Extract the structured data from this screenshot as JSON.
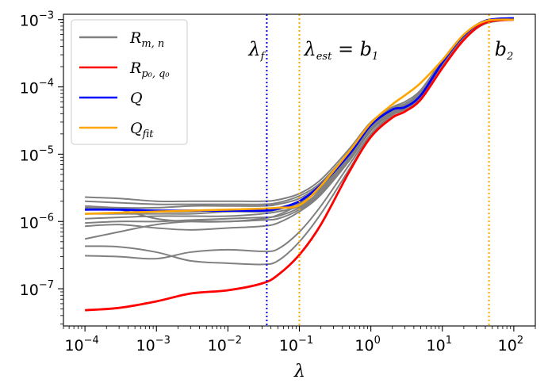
{
  "chart_data": {
    "type": "line",
    "xscale": "log",
    "yscale": "log",
    "xlim": [
      5e-05,
      200
    ],
    "ylim": [
      2.8e-08,
      0.0012
    ],
    "xlabel": "λ",
    "ylabel": "",
    "x_ticks": [
      {
        "value": 0.0001,
        "base": "10",
        "exp": "−4"
      },
      {
        "value": 0.001,
        "base": "10",
        "exp": "−3"
      },
      {
        "value": 0.01,
        "base": "10",
        "exp": "−2"
      },
      {
        "value": 0.1,
        "base": "10",
        "exp": "−1"
      },
      {
        "value": 1,
        "base": "10",
        "exp": "0"
      },
      {
        "value": 10,
        "base": "10",
        "exp": "1"
      },
      {
        "value": 100,
        "base": "10",
        "exp": "2"
      }
    ],
    "y_ticks": [
      {
        "value": 1e-07,
        "base": "10",
        "exp": "−7"
      },
      {
        "value": 1e-06,
        "base": "10",
        "exp": "−6"
      },
      {
        "value": 1e-05,
        "base": "10",
        "exp": "−5"
      },
      {
        "value": 0.0001,
        "base": "10",
        "exp": "−4"
      },
      {
        "value": 0.001,
        "base": "10",
        "exp": "−3"
      }
    ],
    "vlines": [
      {
        "name": "lambda-f",
        "x": 0.035,
        "color": "#0000ff"
      },
      {
        "name": "lambda-est",
        "x": 0.1,
        "color": "#ffa500"
      },
      {
        "name": "b2",
        "x": 45,
        "color": "#ffa500"
      }
    ],
    "annotations": {
      "lambda_f": {
        "main": "λ",
        "sub": "f",
        "x": 0.035
      },
      "lambda_est": {
        "main": "λ",
        "sub": "est",
        "rest": " = b",
        "sub2": "1",
        "x": 0.1
      },
      "b2": {
        "main": "b",
        "sub": "2",
        "x": 45
      }
    },
    "legend": {
      "position": "top-left",
      "entries": [
        {
          "label_main": "R",
          "label_sub": "m, n",
          "color": "#808080"
        },
        {
          "label_main": "R",
          "label_sub": "p₀, q₀",
          "color": "#ff0000"
        },
        {
          "label_main": "Q",
          "label_sub": "",
          "color": "#0000ff"
        },
        {
          "label_main": "Q",
          "label_sub": "fit",
          "color": "#ffa500"
        }
      ]
    },
    "series_x": [
      0.0001,
      0.0003,
      0.001,
      0.003,
      0.01,
      0.03,
      0.05,
      0.1,
      0.2,
      0.5,
      1,
      2,
      3,
      5,
      10,
      20,
      40,
      100
    ],
    "gray_series": [
      {
        "name": "R_m,n",
        "color": "#808080",
        "values": [
          2.3e-06,
          2.2e-06,
          2e-06,
          2e-06,
          2e-06,
          2e-06,
          2.1e-06,
          2.6e-06,
          4.2e-06,
          1.2e-05,
          3e-05,
          5e-05,
          6e-05,
          9e-05,
          0.00025,
          0.0006,
          0.00095,
          0.00105
        ]
      },
      {
        "name": "R_m,n",
        "color": "#808080",
        "values": [
          2e-06,
          1.9e-06,
          1.8e-06,
          1.8e-06,
          1.8e-06,
          1.8e-06,
          1.9e-06,
          2.4e-06,
          3.8e-06,
          1.1e-05,
          2.8e-05,
          4.8e-05,
          5.6e-05,
          8.5e-05,
          0.00024,
          0.00058,
          0.00094,
          0.00105
        ]
      },
      {
        "name": "R_m,n",
        "color": "#808080",
        "values": [
          1.7e-06,
          1.6e-06,
          1.6e-06,
          1.7e-06,
          1.7e-06,
          1.7e-06,
          1.8e-06,
          2.2e-06,
          3.6e-06,
          1.05e-05,
          2.7e-05,
          4.6e-05,
          5.3e-05,
          8.2e-05,
          0.00023,
          0.00056,
          0.00093,
          0.00104
        ]
      },
      {
        "name": "R_m,n",
        "color": "#808080",
        "values": [
          1.5e-06,
          1.5e-06,
          1.4e-06,
          1.4e-06,
          1.5e-06,
          1.5e-06,
          1.6e-06,
          2e-06,
          3.3e-06,
          1e-05,
          2.6e-05,
          4.5e-05,
          5.2e-05,
          8e-05,
          0.00023,
          0.00055,
          0.00092,
          0.00104
        ]
      },
      {
        "name": "R_m,n",
        "color": "#808080",
        "values": [
          1.3e-06,
          1.3e-06,
          1.3e-06,
          1.3e-06,
          1.4e-06,
          1.4e-06,
          1.5e-06,
          1.9e-06,
          3.1e-06,
          9.5e-06,
          2.5e-05,
          4.4e-05,
          5.1e-05,
          7.8e-05,
          0.00022,
          0.00054,
          0.00091,
          0.00103
        ]
      },
      {
        "name": "R_m,n",
        "color": "#808080",
        "values": [
          1.1e-06,
          1.15e-06,
          1.2e-06,
          1.2e-06,
          1.2e-06,
          1.3e-06,
          1.4e-06,
          1.7e-06,
          2.9e-06,
          9e-06,
          2.4e-05,
          4.3e-05,
          5e-05,
          7.6e-05,
          0.00022,
          0.00053,
          0.0009,
          0.00103
        ]
      },
      {
        "name": "R_m,n",
        "color": "#808080",
        "values": [
          9.5e-07,
          1e-06,
          1e-06,
          1.05e-06,
          1.1e-06,
          1.15e-06,
          1.2e-06,
          1.6e-06,
          2.7e-06,
          8.5e-06,
          2.3e-05,
          4.2e-05,
          4.9e-05,
          7.4e-05,
          0.00021,
          0.00052,
          0.00089,
          0.00102
        ]
      },
      {
        "name": "R_m,n",
        "color": "#808080",
        "values": [
          8.5e-07,
          9e-07,
          8e-07,
          7.5e-07,
          8e-07,
          8.5e-07,
          9.5e-07,
          1.4e-06,
          2.5e-06,
          8e-06,
          2.2e-05,
          4.1e-05,
          4.8e-05,
          7.2e-05,
          0.00021,
          0.00051,
          0.00088,
          0.00102
        ]
      },
      {
        "name": "R_m,n",
        "color": "#808080",
        "values": [
          5.5e-07,
          7e-07,
          9e-07,
          1e-06,
          1e-06,
          1.05e-06,
          1.1e-06,
          1.5e-06,
          2.6e-06,
          8.2e-06,
          2.25e-05,
          4.15e-05,
          4.85e-05,
          7.3e-05,
          0.00021,
          0.00051,
          0.00088,
          0.00102
        ]
      },
      {
        "name": "R_m,n",
        "color": "#808080",
        "values": [
          4.3e-07,
          4.2e-07,
          3.5e-07,
          2.6e-07,
          2.4e-07,
          2.3e-07,
          2.6e-07,
          5e-07,
          1.3e-06,
          6e-06,
          1.9e-05,
          3.8e-05,
          4.6e-05,
          7e-05,
          0.0002,
          0.0005,
          0.00087,
          0.00101
        ]
      },
      {
        "name": "R_m,n",
        "color": "#808080",
        "values": [
          3.1e-07,
          3e-07,
          2.8e-07,
          3.5e-07,
          3.8e-07,
          3.6e-07,
          3.9e-07,
          7e-07,
          1.7e-06,
          7e-06,
          2e-05,
          3.9e-05,
          4.7e-05,
          7.1e-05,
          0.000205,
          0.000505,
          0.000875,
          0.00101
        ]
      },
      {
        "name": "R_m,n",
        "color": "#808080",
        "values": [
          1.6e-06,
          1.5e-06,
          1.1e-06,
          1e-06,
          1e-06,
          1.1e-06,
          1.25e-06,
          1.8e-06,
          3.2e-06,
          9.8e-06,
          2.55e-05,
          4.45e-05,
          5.15e-05,
          7.9e-05,
          0.000225,
          0.000545,
          0.000915,
          0.00103
        ]
      }
    ],
    "series": [
      {
        "name": "R_p0,q0",
        "color": "#ff0000",
        "values": [
          4.8e-08,
          5.2e-08,
          6.5e-08,
          8.5e-08,
          9.5e-08,
          1.2e-07,
          1.6e-07,
          3.2e-07,
          9e-07,
          5.5e-06,
          1.8e-05,
          3.5e-05,
          4.3e-05,
          6.5e-05,
          0.00019,
          0.0005,
          0.0009,
          0.001
        ]
      },
      {
        "name": "Q",
        "color": "#0000ff",
        "values": [
          1.5e-06,
          1.5e-06,
          1.45e-06,
          1.45e-06,
          1.45e-06,
          1.45e-06,
          1.55e-06,
          2e-06,
          3.5e-06,
          1e-05,
          2.7e-05,
          4.6e-05,
          5e-05,
          7.5e-05,
          0.00023,
          0.00058,
          0.00096,
          0.00105
        ]
      },
      {
        "name": "Q_fit",
        "color": "#ffa500",
        "values": [
          1.3e-06,
          1.35e-06,
          1.4e-06,
          1.45e-06,
          1.5e-06,
          1.55e-06,
          1.6e-06,
          1.75e-06,
          3.4e-06,
          1.1e-05,
          2.9e-05,
          5.5e-05,
          7.5e-05,
          0.000115,
          0.00025,
          0.0006,
          0.00095,
          0.001
        ]
      }
    ]
  }
}
